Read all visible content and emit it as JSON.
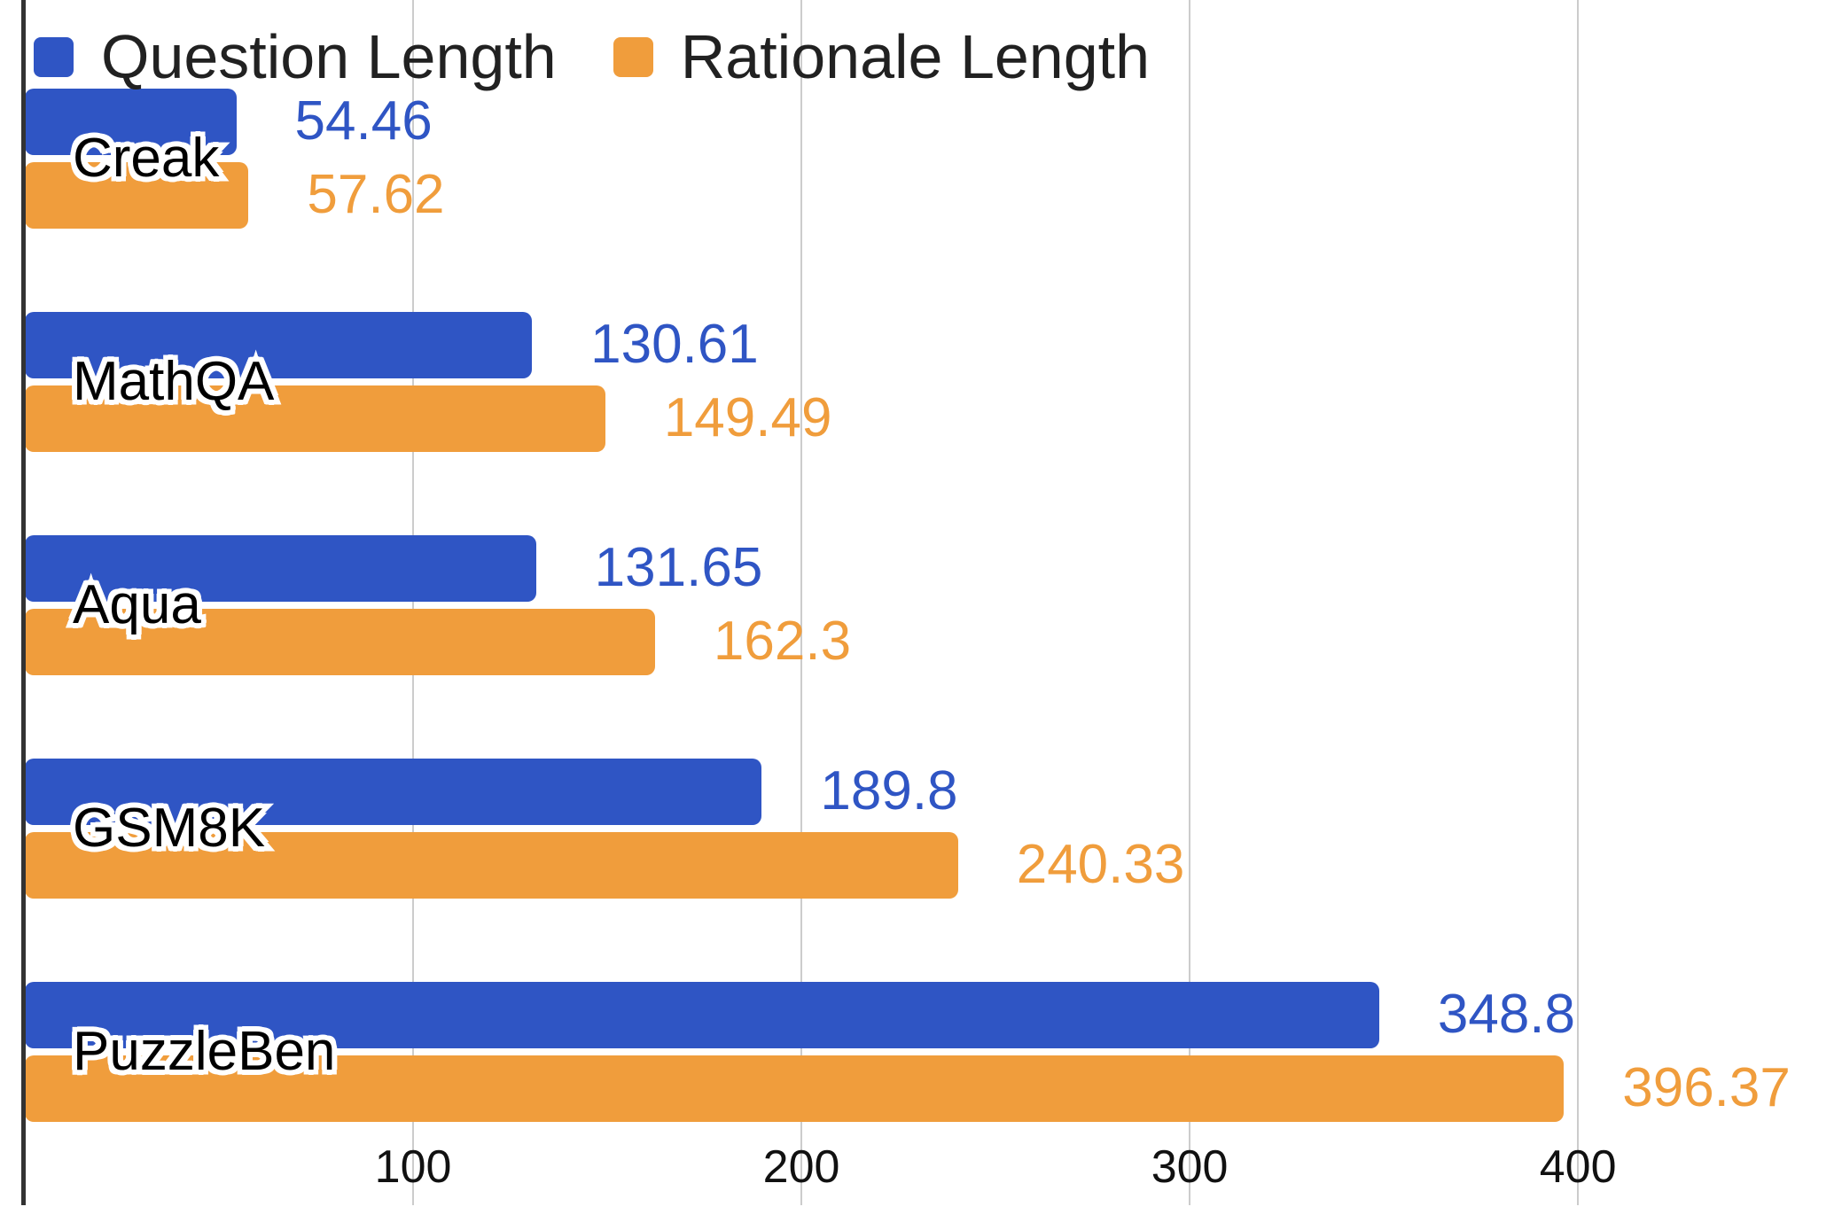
{
  "chart_data": {
    "type": "bar",
    "orientation": "horizontal",
    "title": "",
    "categories": [
      "Creak",
      "MathQA",
      "Aqua",
      "GSM8K",
      "PuzzleBen"
    ],
    "series": [
      {
        "name": "Question Length",
        "color": "#2F55C4",
        "values": [
          54.46,
          130.61,
          131.65,
          189.8,
          348.8
        ]
      },
      {
        "name": "Rationale Length",
        "color": "#F09D3C",
        "values": [
          57.62,
          149.49,
          162.3,
          240.33,
          396.37
        ]
      }
    ],
    "x_ticks": [
      100,
      200,
      300,
      400
    ],
    "xlim": [
      0,
      468
    ],
    "grid": "vertical-only",
    "legend_position": "top-left",
    "value_labels_shown": true
  },
  "legend": {
    "items": [
      {
        "label": "Question Length",
        "color": "#2F55C4"
      },
      {
        "label": "Rationale Length",
        "color": "#F09D3C"
      }
    ]
  },
  "axis": {
    "tick_labels": [
      "100",
      "200",
      "300",
      "400"
    ]
  },
  "style": {
    "background": "#FFFFFF",
    "gridline_color": "#CCCCCC",
    "axis_line_color": "#333333",
    "legend_text_color": "#212121",
    "tick_text_color": "#111111",
    "category_text_color": "#000000"
  }
}
